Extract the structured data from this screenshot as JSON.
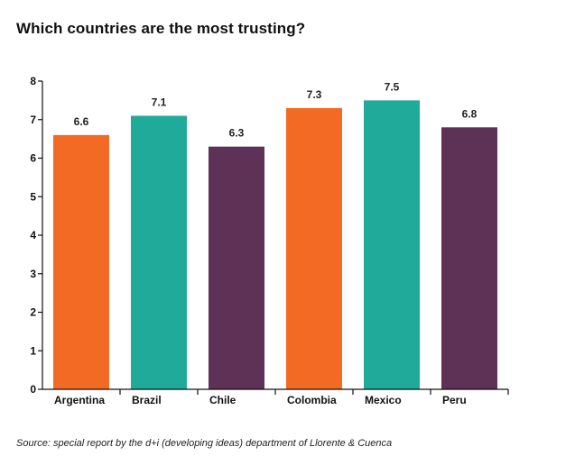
{
  "chart_data": {
    "type": "bar",
    "title": "Which countries are the most trusting?",
    "categories": [
      "Argentina",
      "Brazil",
      "Chile",
      "Colombia",
      "Mexico",
      "Peru"
    ],
    "values": [
      6.6,
      7.1,
      6.3,
      7.3,
      7.5,
      6.8
    ],
    "value_labels": [
      "6.6",
      "7.1",
      "6.3",
      "7.3",
      "7.5",
      "6.8"
    ],
    "bar_colors": [
      "#f26a24",
      "#1faa9a",
      "#5e3157",
      "#f26a24",
      "#1faa9a",
      "#5e3157"
    ],
    "ylim": [
      0,
      8
    ],
    "yticks": [
      "0",
      "1",
      "2",
      "3",
      "4",
      "5",
      "6",
      "7",
      "8"
    ],
    "xlabel": "",
    "ylabel": "",
    "grid": false,
    "legend": "none"
  },
  "source": "Source: special report by the d+i (developing ideas) department of Llorente & Cuenca"
}
